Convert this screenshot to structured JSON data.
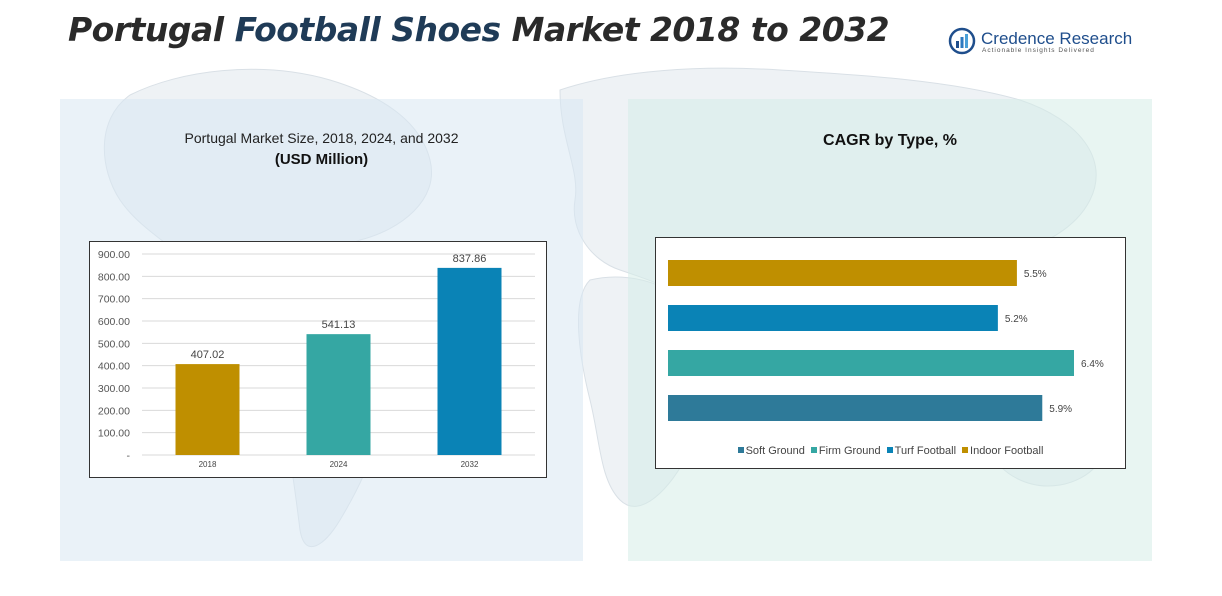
{
  "header": {
    "title_part1": "Portugal",
    "title_part2": "Football Shoes",
    "title_part3": "Market 2018 to 2032"
  },
  "logo": {
    "name": "Credence Research",
    "tagline": "Actionable Insights Delivered"
  },
  "chart_data": [
    {
      "type": "bar",
      "title": "Portugal Market Size, 2018, 2024, and 2032",
      "subtitle": "(USD Million)",
      "categories": [
        "2018",
        "2024",
        "2032"
      ],
      "values": [
        407.02,
        541.13,
        837.86
      ],
      "value_labels": [
        "407.02",
        "541.13",
        "837.86"
      ],
      "colors": [
        "#bf8f00",
        "#35a7a3",
        "#0a83b6"
      ],
      "ylim": [
        0,
        900
      ],
      "yticks": [
        0,
        100,
        200,
        300,
        400,
        500,
        600,
        700,
        800,
        900
      ],
      "ytick_labels": [
        "-",
        "100.00",
        "200.00",
        "300.00",
        "400.00",
        "500.00",
        "600.00",
        "700.00",
        "800.00",
        "900.00"
      ],
      "grid": true
    },
    {
      "type": "bar",
      "orientation": "horizontal",
      "title": "CAGR by Type, %",
      "categories": [
        "Indoor Football",
        "Turf Football",
        "Firm Ground",
        "Soft Ground"
      ],
      "values": [
        5.5,
        5.2,
        6.4,
        5.9
      ],
      "value_labels": [
        "5.5%",
        "5.2%",
        "6.4%",
        "5.9%"
      ],
      "colors": [
        "#bf8f00",
        "#0a83b6",
        "#35a7a3",
        "#2e7a99"
      ],
      "xlim": [
        0,
        6.4
      ],
      "legend": [
        {
          "label": "Soft Ground",
          "color": "#2e7a99"
        },
        {
          "label": "Firm Ground",
          "color": "#35a7a3"
        },
        {
          "label": "Turf Football",
          "color": "#0a83b6"
        },
        {
          "label": "Indoor Football",
          "color": "#bf8f00"
        }
      ],
      "legend_position": "bottom"
    }
  ]
}
